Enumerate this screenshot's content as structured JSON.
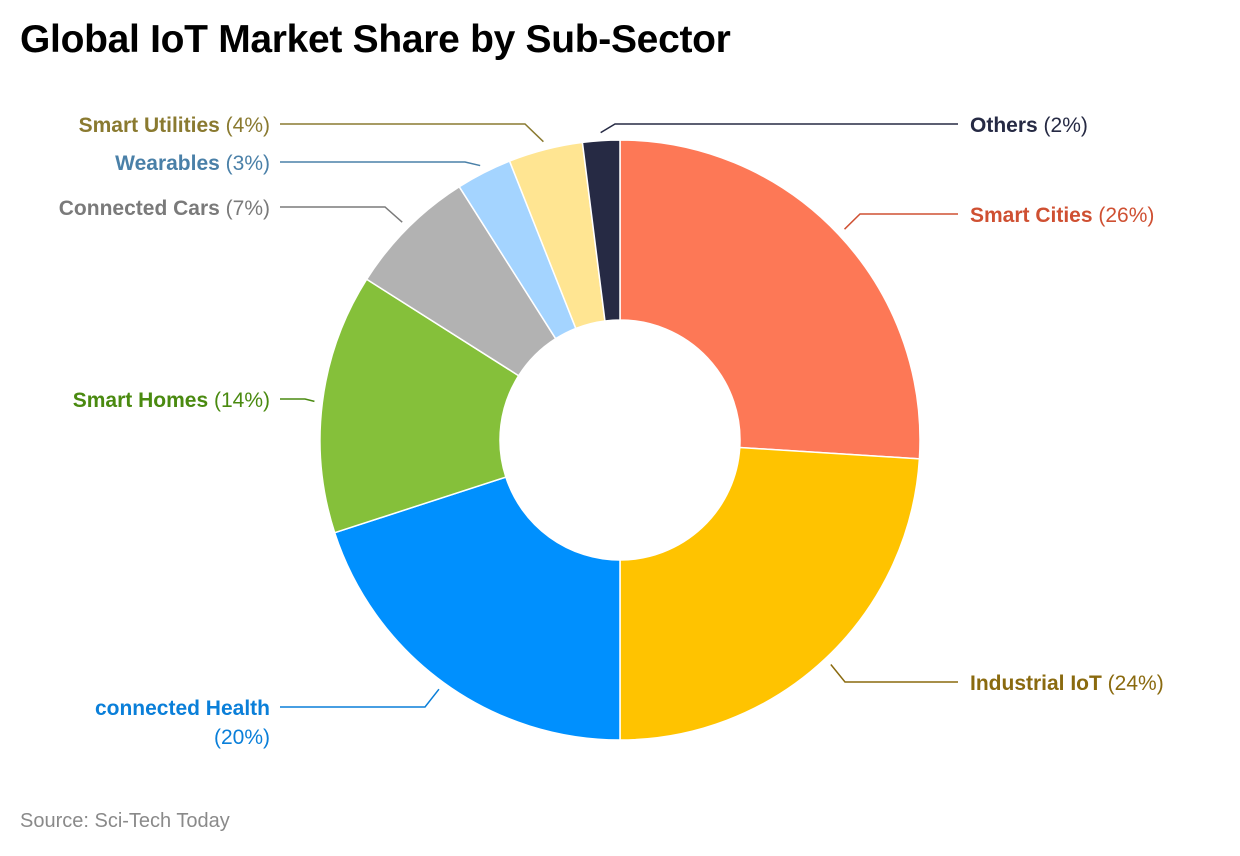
{
  "chart_data": {
    "type": "pie",
    "donut": true,
    "title": "Global IoT Market Share by Sub-Sector",
    "source": "Source: Sci-Tech Today",
    "slices": [
      {
        "name": "Smart Cities",
        "value": 26,
        "value_label": "(26%)",
        "color": "#fd7856",
        "label_color": "#cf5032"
      },
      {
        "name": "Industrial IoT",
        "value": 24,
        "value_label": "(24%)",
        "color": "#ffc300",
        "label_color": "#8a6a0f"
      },
      {
        "name": "connected Health",
        "value": 20,
        "value_label": "(20%)",
        "color": "#0090fe",
        "label_color": "#0a7fd9"
      },
      {
        "name": "Smart Homes",
        "value": 14,
        "value_label": "(14%)",
        "color": "#85c03a",
        "label_color": "#4a8a10"
      },
      {
        "name": "Connected Cars",
        "value": 7,
        "value_label": "(7%)",
        "color": "#b2b2b2",
        "label_color": "#7a7a7a"
      },
      {
        "name": "Wearables",
        "value": 3,
        "value_label": "(3%)",
        "color": "#a4d4ff",
        "label_color": "#4a80a8"
      },
      {
        "name": "Smart Utilities",
        "value": 4,
        "value_label": "(4%)",
        "color": "#ffe592",
        "label_color": "#8a7a30"
      },
      {
        "name": "Others",
        "value": 2,
        "value_label": "(2%)",
        "color": "#262a44",
        "label_color": "#262a44"
      }
    ]
  }
}
